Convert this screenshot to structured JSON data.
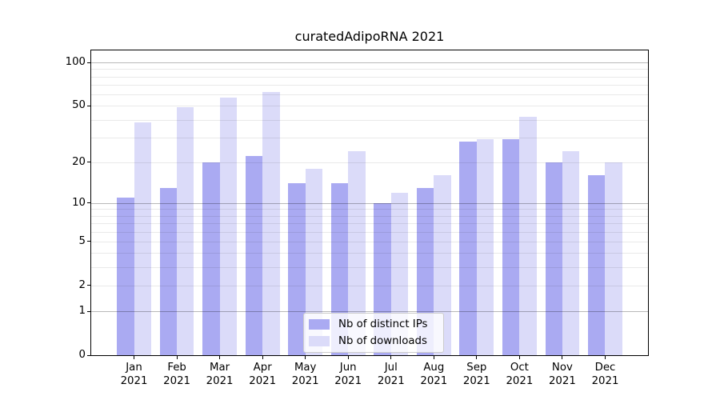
{
  "chart_data": {
    "type": "bar",
    "title": "curatedAdipoRNA 2021",
    "categories": [
      "Jan",
      "Feb",
      "Mar",
      "Apr",
      "May",
      "Jun",
      "Jul",
      "Aug",
      "Sep",
      "Oct",
      "Nov",
      "Dec"
    ],
    "x_tick_label_year": "2021",
    "series": [
      {
        "name": "Nb of distinct IPs",
        "color": "#aaaaf2",
        "values": [
          11,
          13,
          20,
          22,
          14,
          14,
          10,
          13,
          28,
          29,
          20,
          16
        ]
      },
      {
        "name": "Nb of downloads",
        "color": "#dbdbf9",
        "values": [
          38,
          49,
          57,
          62,
          18,
          24,
          12,
          16,
          29,
          42,
          24,
          20
        ]
      }
    ],
    "xlabel": "",
    "ylabel": "",
    "y_axis": {
      "scale": "log1p",
      "tick_values": [
        0,
        1,
        2,
        5,
        10,
        20,
        50,
        100
      ],
      "major_gridlines": [
        1,
        10,
        100
      ],
      "minor_gridlines": [
        2,
        3,
        4,
        5,
        6,
        7,
        8,
        9,
        20,
        30,
        40,
        50,
        60,
        70,
        80,
        90
      ],
      "ylim": [
        0,
        122
      ]
    },
    "grid": true,
    "legend_position": "lower center"
  },
  "colors": {
    "spine": "#000000",
    "major_grid": "rgba(0,0,0,0.28)",
    "minor_grid": "rgba(0,0,0,0.085)",
    "background": "#ffffff"
  }
}
